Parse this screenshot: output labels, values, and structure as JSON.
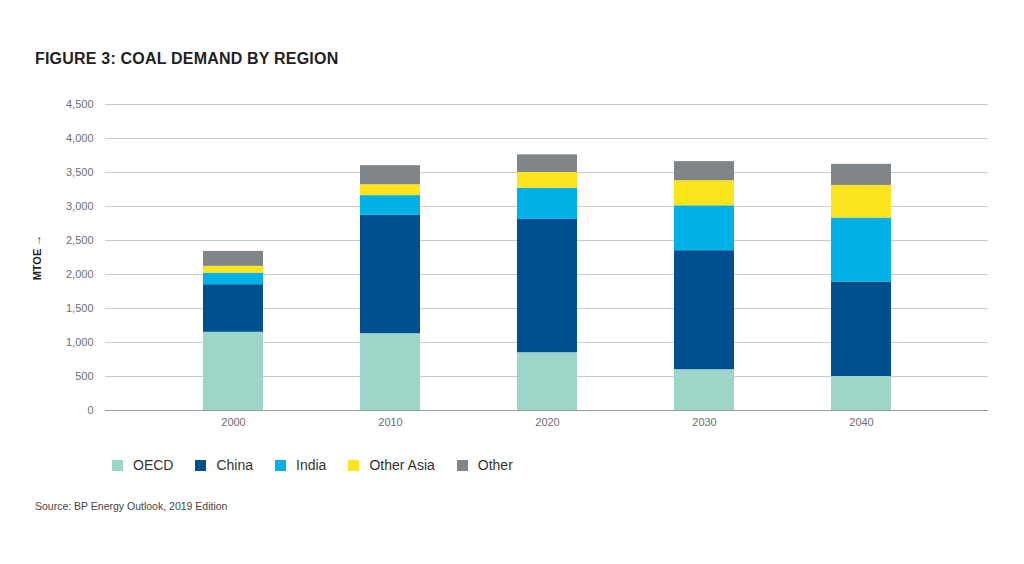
{
  "chart_data": {
    "type": "bar",
    "stacked": true,
    "title": "FIGURE 3: COAL DEMAND BY REGION",
    "y_label": "MTOE",
    "source": "Source: BP Energy Outlook, 2019 Edition",
    "categories": [
      "2000",
      "2010",
      "2020",
      "2030",
      "2040"
    ],
    "series": [
      {
        "name": "OECD",
        "color": "#9dd5c8",
        "values": [
          1150,
          1130,
          850,
          600,
          500
        ]
      },
      {
        "name": "China",
        "color": "#004f8f",
        "values": [
          700,
          1740,
          1960,
          1750,
          1390
        ]
      },
      {
        "name": "India",
        "color": "#00b0e6",
        "values": [
          170,
          290,
          460,
          660,
          940
        ]
      },
      {
        "name": "Other Asia",
        "color": "#fce51d",
        "values": [
          100,
          160,
          230,
          370,
          480
        ]
      },
      {
        "name": "Other",
        "color": "#808589",
        "values": [
          220,
          280,
          260,
          280,
          310
        ]
      }
    ],
    "ylim": [
      0,
      4500
    ],
    "yticks": [
      0,
      500,
      {
        "value": 1000,
        "label": "1,000"
      },
      {
        "value": 1500,
        "label": "1,500"
      },
      {
        "value": 2000,
        "label": "2,000"
      },
      {
        "value": 2500,
        "label": "2,500"
      },
      {
        "value": 3000,
        "label": "3,000"
      },
      {
        "value": 3500,
        "label": "3,500"
      },
      {
        "value": 4000,
        "label": "4,000"
      },
      {
        "value": 4500,
        "label": "4,500"
      }
    ],
    "grid": true,
    "legend": "bottom"
  }
}
